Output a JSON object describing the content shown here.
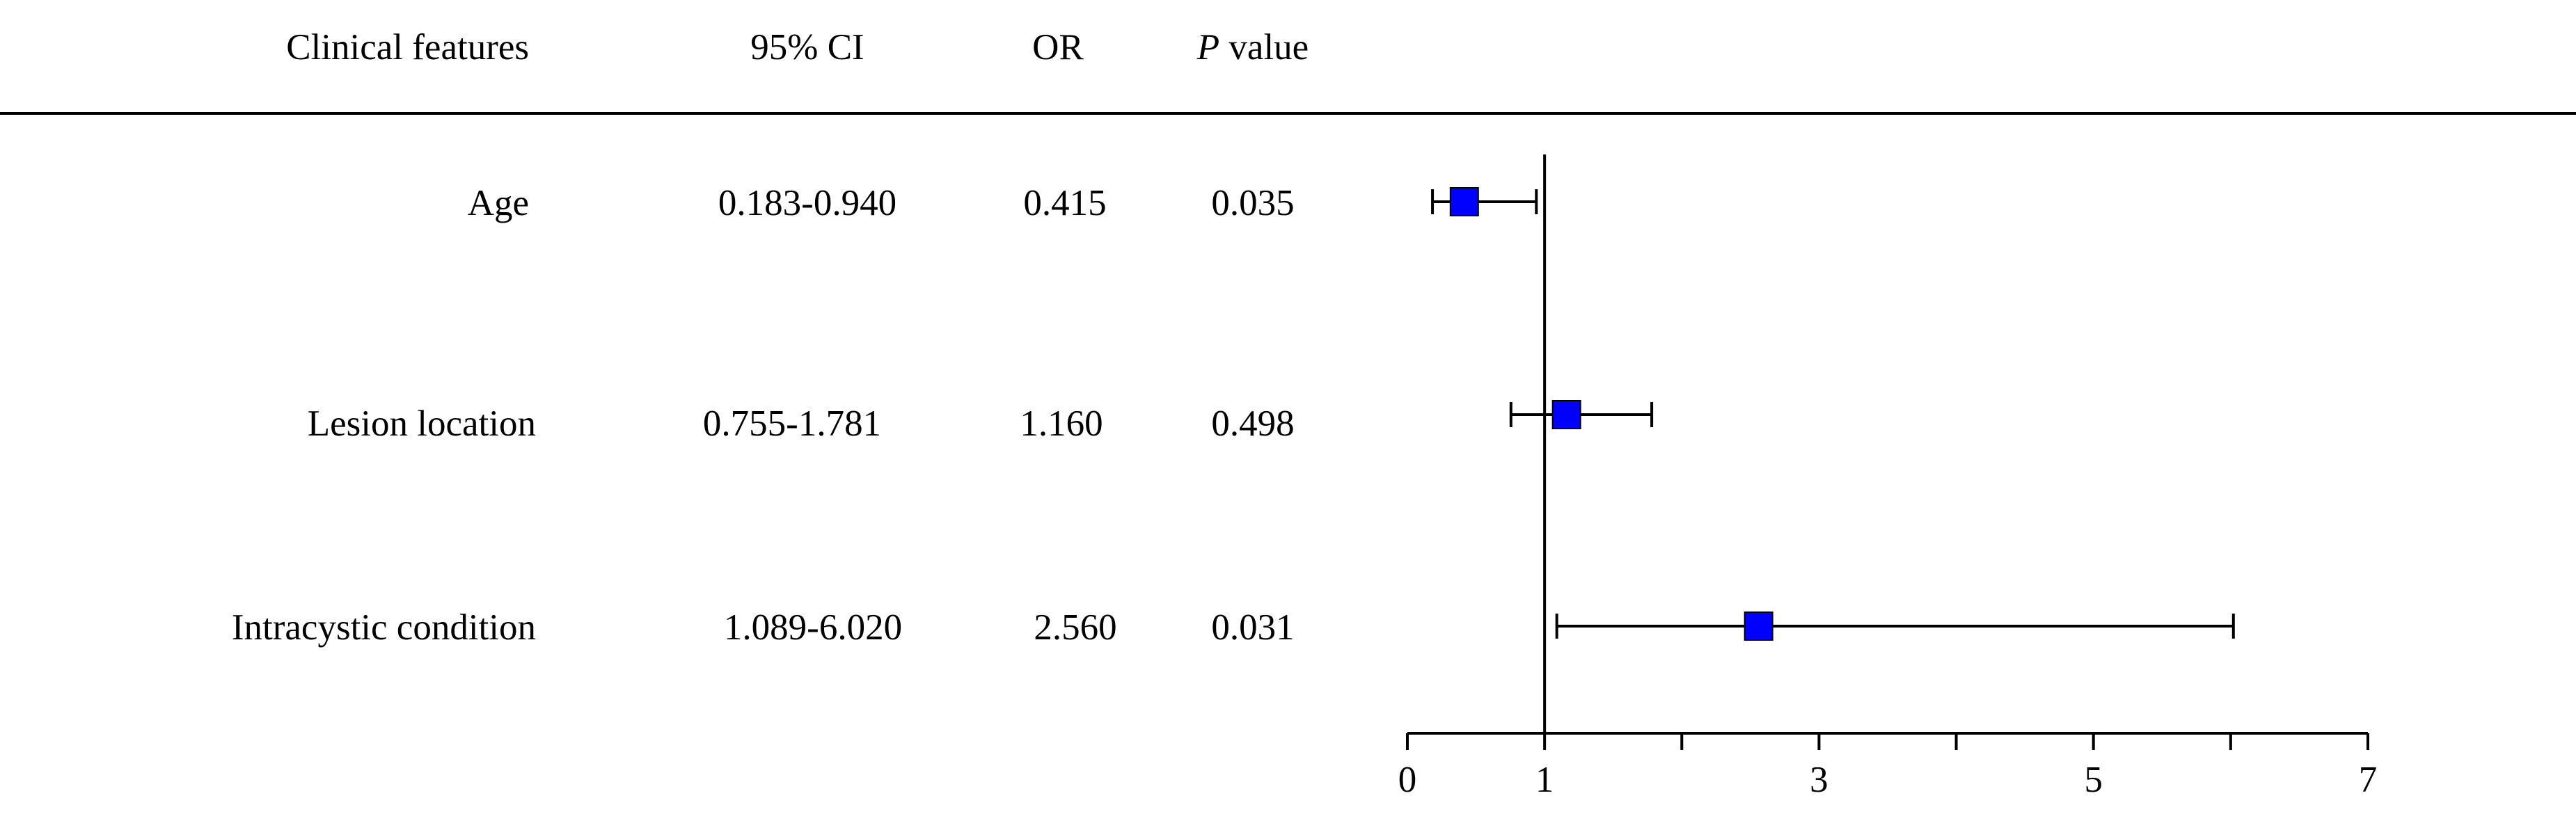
{
  "table": {
    "headers": {
      "feature": "Clinical features",
      "ci": "95% CI",
      "or": "OR",
      "p_italic": "P",
      "p_rest": " value"
    },
    "rows": [
      {
        "feature": "Age",
        "ci": "0.183-0.940",
        "or": "0.415",
        "p": "0.035"
      },
      {
        "feature": "Lesion location",
        "ci": "0.755-1.781",
        "or": "1.160",
        "p": "0.498"
      },
      {
        "feature": "Intracystic condition",
        "ci": "1.089-6.020",
        "or": "2.560",
        "p": "0.031"
      }
    ]
  },
  "chart_data": {
    "type": "scatter",
    "subtype": "forest-plot",
    "title": "",
    "xlabel": "",
    "ylabel": "",
    "xlim": [
      0,
      7
    ],
    "reference_line": 1,
    "x_ticks": [
      0,
      1,
      2,
      3,
      4,
      5,
      6,
      7
    ],
    "x_tick_labels": [
      "0",
      "1",
      "3",
      "5",
      "7"
    ],
    "x_tick_label_values": [
      0,
      1,
      3,
      5,
      7
    ],
    "categories": [
      "Age",
      "Lesion location",
      "Intracystic condition"
    ],
    "series": [
      {
        "values": [
          0.415,
          1.16,
          2.56
        ],
        "lower": [
          0.183,
          0.755,
          1.089
        ],
        "upper": [
          0.94,
          1.781,
          6.02
        ]
      }
    ],
    "marker_color": "#0000ff",
    "grid": false
  }
}
